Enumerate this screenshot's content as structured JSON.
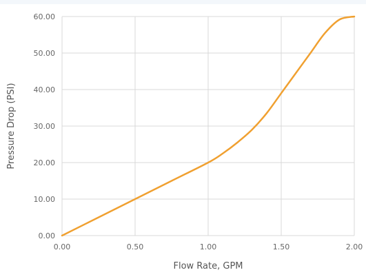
{
  "chart_data": {
    "type": "line",
    "title": "",
    "xlabel": "Flow Rate, GPM",
    "ylabel": "Pressure Drop (PSI)",
    "xlim": [
      0,
      2
    ],
    "ylim": [
      0,
      60
    ],
    "x_ticks": [
      "0.00",
      "0.50",
      "1.00",
      "1.50",
      "2.00"
    ],
    "y_ticks": [
      "0.00",
      "10.00",
      "20.00",
      "30.00",
      "40.00",
      "50.00",
      "60.00"
    ],
    "grid": true,
    "legend": "none",
    "series": [
      {
        "color": "#f0a030",
        "x": [
          0,
          0.25,
          0.5,
          0.75,
          1.0,
          1.1,
          1.2,
          1.3,
          1.4,
          1.5,
          1.6,
          1.7,
          1.8,
          1.9,
          2.0
        ],
        "y": [
          0,
          5,
          10,
          15,
          20,
          22.5,
          25.5,
          29,
          33.5,
          39,
          44.5,
          50,
          55.5,
          59.2,
          60
        ]
      }
    ]
  }
}
